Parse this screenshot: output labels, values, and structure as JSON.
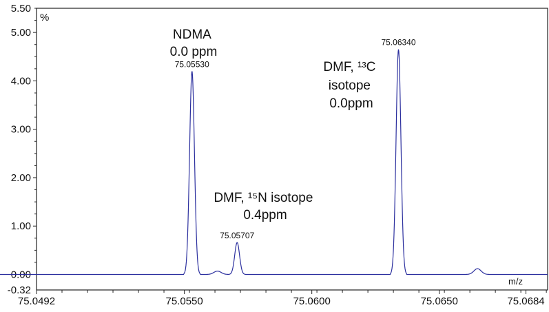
{
  "chart_data": {
    "type": "line",
    "title": "",
    "xlabel": "m/z",
    "ylabel": "%",
    "xlim": [
      75.0492,
      75.06925
    ],
    "ylim": [
      -0.32,
      5.5
    ],
    "x_tick_labels": [
      "75.0492",
      "75.0550",
      "75.0600",
      "75.0650",
      "75.0684"
    ],
    "x_tick_values": [
      75.0492,
      75.055,
      75.06,
      75.065,
      75.0684
    ],
    "y_tick_labels": [
      "5.50",
      "5.00",
      "4.00",
      "3.00",
      "2.00",
      "1.00",
      "0.00",
      "-0.32"
    ],
    "y_tick_values": [
      5.5,
      5.0,
      4.0,
      3.0,
      2.0,
      1.0,
      0.0,
      -0.32
    ],
    "line_color": "#2b2f9e",
    "peaks": [
      {
        "mz": 75.0553,
        "intensity": 4.2,
        "label": "75.05530"
      },
      {
        "mz": 75.0563,
        "intensity": 0.07,
        "label": ""
      },
      {
        "mz": 75.05707,
        "intensity": 0.66,
        "label": "75.05707"
      },
      {
        "mz": 75.0634,
        "intensity": 4.65,
        "label": "75.06340"
      },
      {
        "mz": 75.0665,
        "intensity": 0.12,
        "label": ""
      }
    ],
    "annotations": [
      {
        "lines": [
          "NDMA",
          "0.0 ppm"
        ]
      },
      {
        "lines": [
          "DMF, ¹⁵N isotope",
          "0.4ppm"
        ]
      },
      {
        "lines": [
          "DMF, ¹³C",
          "isotope",
          "0.0ppm"
        ]
      }
    ]
  }
}
